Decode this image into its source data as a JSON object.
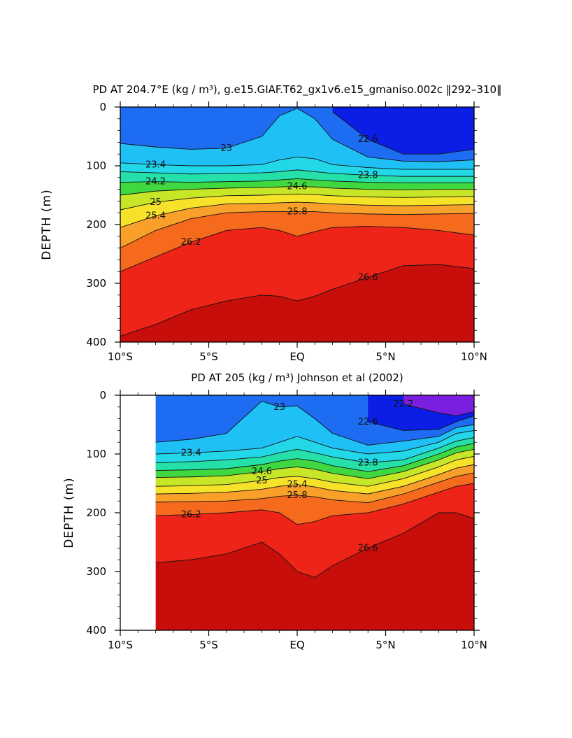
{
  "chart_data": [
    {
      "type": "contour",
      "title": "PD AT 204.7°E (kg / m³), g.e15.GIAF.T62_gx1v6.e15_gmaniso.002c ‖292–310‖",
      "xlabel": "",
      "ylabel": "DEPTH (m)",
      "xlim": [
        -10,
        10
      ],
      "ylim": [
        400,
        0
      ],
      "x_ticks": [
        -10,
        -5,
        0,
        5,
        10
      ],
      "x_tick_labels": [
        "10°S",
        "5°S",
        "EQ",
        "5°N",
        "10°N"
      ],
      "y_ticks": [
        0,
        100,
        200,
        300,
        400
      ],
      "y_tick_labels": [
        "0",
        "100",
        "200",
        "300",
        "400"
      ],
      "data_extent_x": [
        -10,
        10
      ],
      "levels": [
        22.2,
        22.6,
        23.0,
        23.4,
        23.8,
        24.2,
        24.6,
        25.0,
        25.4,
        25.8,
        26.2,
        26.6
      ],
      "isopycnal_depth_profiles": {
        "x": [
          -10,
          -8,
          -6,
          -4,
          -2,
          -1,
          0,
          1,
          2,
          4,
          6,
          8,
          10
        ],
        "22.6": [
          null,
          null,
          null,
          null,
          null,
          null,
          null,
          null,
          8,
          55,
          80,
          80,
          72
        ],
        "23.0": [
          62,
          68,
          72,
          70,
          50,
          15,
          2,
          20,
          55,
          85,
          92,
          93,
          90
        ],
        "23.4": [
          95,
          98,
          100,
          100,
          98,
          90,
          85,
          88,
          98,
          103,
          106,
          106,
          106
        ],
        "23.8": [
          110,
          112,
          114,
          113,
          112,
          110,
          107,
          110,
          113,
          116,
          118,
          118,
          118
        ],
        "24.2": [
          128,
          127,
          128,
          127,
          126,
          124,
          122,
          124,
          126,
          128,
          129,
          129,
          129
        ],
        "24.6": [
          150,
          143,
          140,
          138,
          137,
          136,
          135,
          136,
          138,
          140,
          141,
          140,
          140
        ],
        "25.0": [
          175,
          162,
          155,
          151,
          150,
          149,
          148,
          149,
          151,
          153,
          154,
          153,
          152
        ],
        "25.4": [
          205,
          185,
          172,
          165,
          164,
          163,
          162,
          163,
          165,
          167,
          168,
          167,
          166
        ],
        "25.8": [
          240,
          210,
          190,
          180,
          178,
          178,
          178,
          178,
          180,
          182,
          183,
          182,
          181
        ],
        "26.2": [
          280,
          255,
          230,
          210,
          205,
          210,
          220,
          212,
          205,
          203,
          205,
          210,
          218
        ],
        "26.6": [
          390,
          370,
          345,
          330,
          320,
          322,
          330,
          322,
          310,
          290,
          270,
          268,
          275
        ]
      },
      "contour_labels": [
        "23",
        "22.6",
        "23.4",
        "23.8",
        "24.2",
        "24.6",
        "25",
        "25.4",
        "25.8",
        "26.2",
        "26.6"
      ]
    },
    {
      "type": "contour",
      "title": "PD AT 205 (kg / m³) Johnson et al (2002)",
      "xlabel": "",
      "ylabel": "DEPTH (m)",
      "xlim": [
        -10,
        10
      ],
      "ylim": [
        400,
        0
      ],
      "x_ticks": [
        -10,
        -5,
        0,
        5,
        10
      ],
      "x_tick_labels": [
        "10°S",
        "5°S",
        "EQ",
        "5°N",
        "10°N"
      ],
      "y_ticks": [
        0,
        100,
        200,
        300,
        400
      ],
      "y_tick_labels": [
        "0",
        "100",
        "200",
        "300",
        "400"
      ],
      "data_extent_x": [
        -8,
        10
      ],
      "levels": [
        22.2,
        22.6,
        23.0,
        23.4,
        23.8,
        24.2,
        24.6,
        25.0,
        25.4,
        25.8,
        26.2,
        26.6
      ],
      "isopycnal_depth_profiles": {
        "x": [
          -8,
          -6,
          -4,
          -2,
          -1,
          0,
          1,
          2,
          4,
          6,
          8,
          9,
          10
        ],
        "22.2": [
          null,
          null,
          null,
          null,
          null,
          null,
          null,
          null,
          null,
          15,
          30,
          35,
          28
        ],
        "22.6": [
          null,
          null,
          null,
          null,
          null,
          null,
          null,
          null,
          45,
          60,
          58,
          45,
          35
        ],
        "23.0": [
          80,
          75,
          65,
          10,
          20,
          18,
          40,
          65,
          85,
          78,
          70,
          55,
          50
        ],
        "23.4": [
          100,
          98,
          95,
          90,
          80,
          70,
          80,
          90,
          100,
          95,
          80,
          65,
          60
        ],
        "23.8": [
          115,
          113,
          110,
          105,
          98,
          92,
          98,
          105,
          115,
          110,
          90,
          78,
          72
        ],
        "24.2": [
          128,
          127,
          125,
          118,
          112,
          108,
          112,
          120,
          130,
          120,
          100,
          88,
          82
        ],
        "24.6": [
          140,
          139,
          137,
          130,
          125,
          122,
          126,
          133,
          142,
          130,
          110,
          98,
          92
        ],
        "25.0": [
          155,
          154,
          152,
          145,
          140,
          138,
          142,
          148,
          155,
          142,
          122,
          110,
          104
        ],
        "25.4": [
          168,
          167,
          165,
          160,
          155,
          152,
          156,
          162,
          168,
          155,
          135,
          124,
          118
        ],
        "25.8": [
          182,
          181,
          180,
          176,
          172,
          170,
          173,
          178,
          183,
          168,
          148,
          138,
          132
        ],
        "26.2": [
          205,
          203,
          200,
          195,
          200,
          220,
          215,
          205,
          200,
          185,
          165,
          155,
          150
        ],
        "26.6": [
          285,
          280,
          270,
          250,
          270,
          300,
          310,
          290,
          260,
          235,
          200,
          200,
          210
        ]
      },
      "contour_labels": [
        "23",
        "22.2",
        "22.6",
        "23.4",
        "23.8",
        "24.6",
        "25",
        "25.4",
        "25.8",
        "26.2",
        "26.6"
      ]
    }
  ]
}
